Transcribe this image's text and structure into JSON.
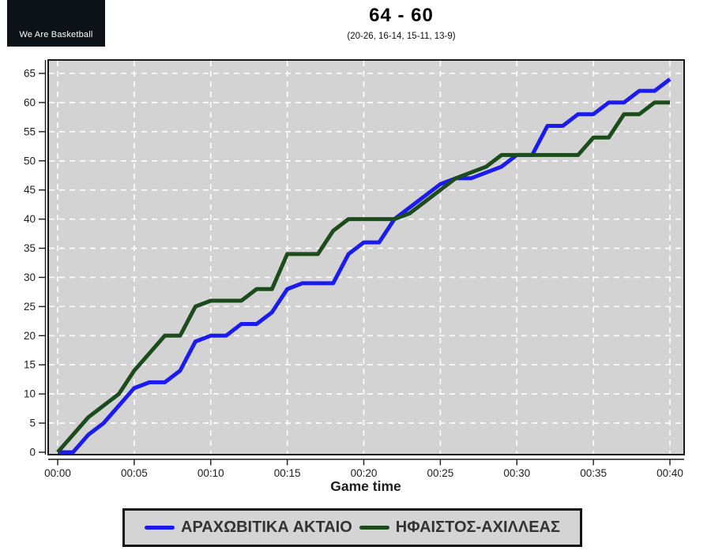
{
  "header": {
    "logo_text": "We Are Basketball",
    "score_title": "64 - 60",
    "quarter_scores": "(20-26, 16-14, 15-11, 13-9)"
  },
  "chart_data": {
    "type": "line",
    "title": "64 - 60",
    "subtitle": "(20-26, 16-14, 15-11, 13-9)",
    "xlabel": "Game time",
    "ylabel": "",
    "xlim_minutes": [
      0,
      40
    ],
    "ylim": [
      0,
      65
    ],
    "grid": "white dashed on gray panel",
    "plot_bg": "#d3d3d3",
    "grid_color": "#ffffff",
    "axis_color": "#1a1a1a",
    "legend_position": "bottom",
    "x_tick_minutes": [
      0,
      5,
      10,
      15,
      20,
      25,
      30,
      35,
      40
    ],
    "x_tick_labels": [
      "00:00",
      "00:05",
      "00:10",
      "00:15",
      "00:20",
      "00:25",
      "00:30",
      "00:35",
      "00:40"
    ],
    "y_ticks": [
      0,
      5,
      10,
      15,
      20,
      25,
      30,
      35,
      40,
      45,
      50,
      55,
      60,
      65
    ],
    "x_minutes": [
      0,
      1,
      2,
      3,
      4,
      5,
      6,
      7,
      8,
      9,
      10,
      11,
      12,
      13,
      14,
      15,
      16,
      17,
      18,
      19,
      20,
      21,
      22,
      23,
      24,
      25,
      26,
      27,
      28,
      29,
      30,
      31,
      32,
      33,
      34,
      35,
      36,
      37,
      38,
      39,
      40
    ],
    "series": [
      {
        "name": "ΑΡΑΧΩΒΙΤΙΚΑ ΑΚΤΑΙΟ",
        "color": "#1b1bf0",
        "final_score": 64,
        "values": [
          0,
          0,
          3,
          5,
          8,
          11,
          12,
          12,
          14,
          19,
          20,
          20,
          22,
          22,
          24,
          28,
          29,
          29,
          29,
          34,
          36,
          36,
          40,
          42,
          44,
          46,
          47,
          47,
          48,
          49,
          51,
          51,
          56,
          56,
          58,
          58,
          60,
          60,
          62,
          62,
          64
        ]
      },
      {
        "name": "ΗΦΑΙΣΤΟΣ-ΑΧΙΛΛΕΑΣ",
        "color": "#1c4b1c",
        "final_score": 60,
        "values": [
          0,
          3,
          6,
          8,
          10,
          14,
          17,
          20,
          20,
          25,
          26,
          26,
          26,
          28,
          28,
          34,
          34,
          34,
          38,
          40,
          40,
          40,
          40,
          41,
          43,
          45,
          47,
          48,
          49,
          51,
          51,
          51,
          51,
          51,
          51,
          54,
          54,
          58,
          58,
          60,
          60
        ]
      }
    ]
  }
}
